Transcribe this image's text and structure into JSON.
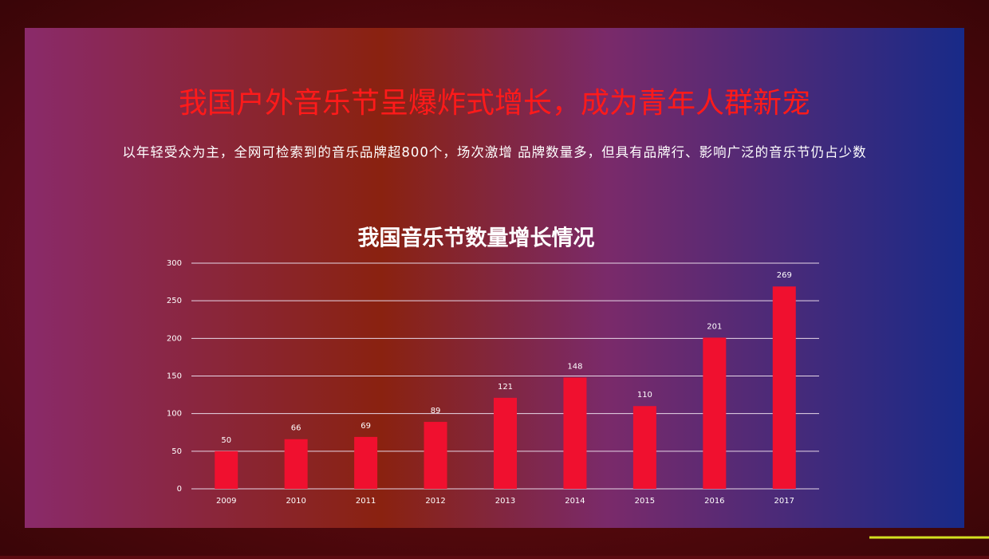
{
  "header": {
    "title": "我国户外音乐节呈爆炸式增长，成为青年人群新宠",
    "subtitle": "以年轻受众为主，全网可检索到的音乐品牌超800个，场次激增  品牌数量多，但具有品牌行、影响广泛的音乐节仍占少数"
  },
  "chart_data": {
    "type": "bar",
    "title": "我国音乐节数量增长情况",
    "categories": [
      "2009",
      "2010",
      "2011",
      "2012",
      "2013",
      "2014",
      "2015",
      "2016",
      "2017"
    ],
    "values": [
      50,
      66,
      69,
      89,
      121,
      148,
      110,
      201,
      269
    ],
    "color": "#f0102f",
    "ylim": [
      0,
      300
    ],
    "yticks": [
      0,
      50,
      100,
      150,
      200,
      250,
      300
    ],
    "grid": true
  }
}
